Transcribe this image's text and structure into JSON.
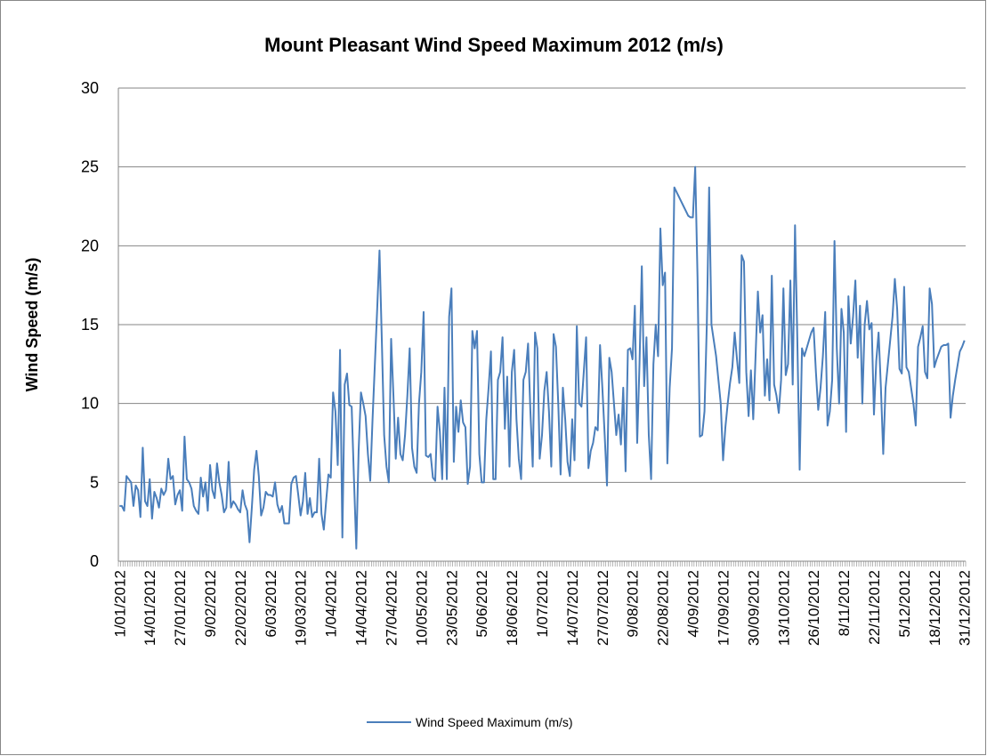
{
  "chart_data": {
    "type": "line",
    "title": "Mount Pleasant Wind Speed Maximum 2012 (m/s)",
    "y_label": "Wind Speed (m/s)",
    "categories": [
      "1/01/2012",
      null,
      null,
      null,
      null,
      null,
      null,
      null,
      null,
      null,
      null,
      null,
      null,
      "14/01/2012",
      null,
      null,
      null,
      null,
      null,
      null,
      null,
      null,
      null,
      null,
      null,
      null,
      "27/01/2012",
      null,
      null,
      null,
      null,
      null,
      null,
      null,
      null,
      null,
      null,
      null,
      null,
      "9/02/2012",
      null,
      null,
      null,
      null,
      null,
      null,
      null,
      null,
      null,
      null,
      null,
      null,
      "22/02/2012",
      null,
      null,
      null,
      null,
      null,
      null,
      null,
      null,
      null,
      null,
      null,
      null,
      "6/03/2012",
      null,
      null,
      null,
      null,
      null,
      null,
      null,
      null,
      null,
      null,
      null,
      null,
      "19/03/2012",
      null,
      null,
      null,
      null,
      null,
      null,
      null,
      null,
      null,
      null,
      null,
      null,
      "1/04/2012",
      null,
      null,
      null,
      null,
      null,
      null,
      null,
      null,
      null,
      null,
      null,
      null,
      "14/04/2012",
      null,
      null,
      null,
      null,
      null,
      null,
      null,
      null,
      null,
      null,
      null,
      null,
      "27/04/2012",
      null,
      null,
      null,
      null,
      null,
      null,
      null,
      null,
      null,
      null,
      null,
      null,
      "10/05/2012",
      null,
      null,
      null,
      null,
      null,
      null,
      null,
      null,
      null,
      null,
      null,
      null,
      "23/05/2012",
      null,
      null,
      null,
      null,
      null,
      null,
      null,
      null,
      null,
      null,
      null,
      null,
      "5/06/2012",
      null,
      null,
      null,
      null,
      null,
      null,
      null,
      null,
      null,
      null,
      null,
      null,
      "18/06/2012",
      null,
      null,
      null,
      null,
      null,
      null,
      null,
      null,
      null,
      null,
      null,
      null,
      "1/07/2012",
      null,
      null,
      null,
      null,
      null,
      null,
      null,
      null,
      null,
      null,
      null,
      null,
      "14/07/2012",
      null,
      null,
      null,
      null,
      null,
      null,
      null,
      null,
      null,
      null,
      null,
      null,
      "27/07/2012",
      null,
      null,
      null,
      null,
      null,
      null,
      null,
      null,
      null,
      null,
      null,
      null,
      "9/08/2012",
      null,
      null,
      null,
      null,
      null,
      null,
      null,
      null,
      null,
      null,
      null,
      null,
      "22/08/2012",
      null,
      null,
      null,
      null,
      null,
      null,
      null,
      null,
      null,
      null,
      null,
      null,
      "4/09/2012",
      null,
      null,
      null,
      null,
      null,
      null,
      null,
      null,
      null,
      null,
      null,
      null,
      "17/09/2012",
      null,
      null,
      null,
      null,
      null,
      null,
      null,
      null,
      null,
      null,
      null,
      null,
      "30/09/2012",
      null,
      null,
      null,
      null,
      null,
      null,
      null,
      null,
      null,
      null,
      null,
      null,
      "13/10/2012",
      null,
      null,
      null,
      null,
      null,
      null,
      null,
      null,
      null,
      null,
      null,
      null,
      "26/10/2012",
      null,
      null,
      null,
      null,
      null,
      null,
      null,
      null,
      null,
      null,
      null,
      null,
      "8/11/2012",
      null,
      null,
      null,
      null,
      null,
      null,
      null,
      null,
      null,
      null,
      null,
      null,
      "22/11/2012",
      null,
      null,
      null,
      null,
      null,
      null,
      null,
      null,
      null,
      null,
      null,
      null,
      "5/12/2012",
      null,
      null,
      null,
      null,
      null,
      null,
      null,
      null,
      null,
      null,
      null,
      null,
      "18/12/2012",
      null,
      null,
      null,
      null,
      null,
      null,
      null,
      null,
      null,
      null,
      null,
      null,
      "31/12/2012"
    ],
    "series": [
      {
        "name": "Wind Speed Maximum (m/s)",
        "color": "#4a7ebb",
        "values": [
          3.5,
          3.5,
          3.2,
          5.4,
          5.2,
          5.0,
          3.5,
          4.8,
          4.5,
          2.8,
          7.2,
          3.8,
          3.5,
          5.2,
          2.7,
          4.4,
          4.0,
          3.4,
          4.6,
          4.2,
          4.5,
          6.5,
          5.2,
          5.4,
          3.6,
          4.2,
          4.5,
          3.2,
          7.9,
          5.2,
          5.0,
          4.6,
          3.5,
          3.2,
          3.0,
          5.3,
          4.1,
          5.0,
          3.2,
          6.1,
          4.5,
          4.0,
          6.2,
          5.0,
          4.2,
          3.1,
          3.4,
          6.3,
          3.4,
          3.8,
          3.6,
          3.3,
          3.1,
          4.5,
          3.6,
          3.2,
          1.2,
          3.4,
          5.8,
          7.0,
          5.4,
          2.9,
          3.4,
          4.4,
          4.2,
          4.2,
          4.1,
          5.0,
          3.6,
          3.1,
          3.5,
          2.4,
          2.4,
          2.4,
          4.9,
          5.3,
          5.4,
          4.2,
          2.9,
          3.8,
          5.6,
          3.0,
          4.0,
          2.8,
          3.1,
          3.1,
          6.5,
          3.0,
          2.0,
          3.8,
          5.5,
          5.3,
          10.7,
          9.5,
          6.1,
          13.4,
          1.5,
          11.2,
          11.9,
          9.9,
          9.8,
          5.2,
          0.8,
          7.0,
          10.7,
          10.0,
          9.2,
          6.8,
          5.1,
          9.0,
          12.5,
          16.0,
          19.7,
          14.0,
          8.0,
          6.0,
          5.0,
          14.1,
          10.5,
          6.5,
          9.1,
          6.8,
          6.4,
          8.0,
          10.5,
          13.5,
          7.2,
          6.0,
          5.6,
          10.0,
          12.0,
          15.8,
          6.7,
          6.6,
          6.8,
          5.3,
          5.1,
          9.8,
          8.2,
          5.2,
          11.0,
          5.2,
          15.5,
          17.3,
          6.3,
          9.8,
          8.2,
          10.2,
          8.8,
          8.5,
          4.9,
          6.0,
          14.6,
          13.5,
          14.6,
          6.8,
          5.0,
          5.0,
          9.0,
          11.0,
          13.3,
          5.2,
          5.2,
          11.5,
          12.0,
          14.2,
          8.4,
          11.7,
          6.0,
          12.0,
          13.4,
          9.0,
          6.5,
          5.2,
          11.5,
          12.0,
          13.8,
          9.5,
          6.0,
          14.5,
          13.5,
          6.5,
          8.0,
          10.8,
          12.0,
          9.5,
          6.0,
          14.4,
          13.6,
          10.0,
          5.5,
          11.0,
          9.0,
          6.3,
          5.4,
          9.0,
          6.4,
          14.9,
          10.0,
          9.8,
          12.0,
          14.2,
          5.9,
          7.0,
          7.5,
          8.5,
          8.3,
          13.7,
          11.0,
          8.0,
          4.8,
          12.9,
          12.0,
          10.0,
          8.0,
          9.3,
          7.4,
          11.0,
          5.7,
          13.4,
          13.5,
          12.8,
          16.2,
          7.5,
          12.5,
          18.7,
          11.1,
          14.2,
          8.0,
          5.2,
          12.5,
          15.0,
          13.0,
          21.1,
          17.5,
          18.3,
          6.2,
          11.0,
          13.5,
          23.7,
          23.4,
          23.1,
          22.8,
          22.5,
          22.2,
          21.9,
          21.8,
          21.8,
          25.0,
          18.0,
          7.9,
          8.0,
          9.5,
          15.0,
          23.7,
          15.0,
          14.0,
          13.0,
          11.5,
          10.0,
          6.4,
          8.5,
          10.0,
          11.3,
          12.3,
          14.5,
          12.8,
          11.3,
          19.4,
          19.0,
          12.0,
          9.2,
          12.1,
          9.0,
          13.0,
          17.1,
          14.5,
          15.6,
          10.5,
          12.8,
          10.2,
          18.1,
          11.2,
          10.5,
          9.4,
          11.5,
          17.3,
          11.8,
          12.5,
          17.8,
          11.2,
          21.3,
          14.0,
          5.8,
          13.5,
          13.0,
          13.5,
          14.0,
          14.5,
          14.8,
          12.0,
          9.6,
          11.0,
          13.0,
          15.8,
          8.6,
          9.5,
          11.5,
          20.3,
          13.5,
          10.0,
          16.0,
          14.5,
          8.2,
          16.8,
          13.8,
          15.5,
          17.8,
          12.9,
          16.2,
          10.0,
          15.0,
          16.5,
          14.7,
          15.1,
          9.3,
          12.7,
          14.5,
          11.0,
          6.8,
          11.0,
          12.5,
          14.0,
          15.5,
          17.9,
          16.0,
          12.2,
          11.9,
          17.4,
          12.3,
          12.0,
          11.0,
          10.0,
          8.6,
          13.6,
          14.2,
          14.9,
          12.0,
          11.6,
          17.3,
          16.3,
          12.3,
          12.8,
          13.2,
          13.6,
          13.7,
          13.7,
          13.8,
          9.1,
          10.5,
          11.5,
          12.4,
          13.3,
          13.6,
          14.0
        ]
      }
    ],
    "ylim": [
      0,
      30
    ],
    "yticks": [
      0,
      5,
      10,
      15,
      20,
      25,
      30
    ],
    "grid": true,
    "legend": "bottom"
  }
}
